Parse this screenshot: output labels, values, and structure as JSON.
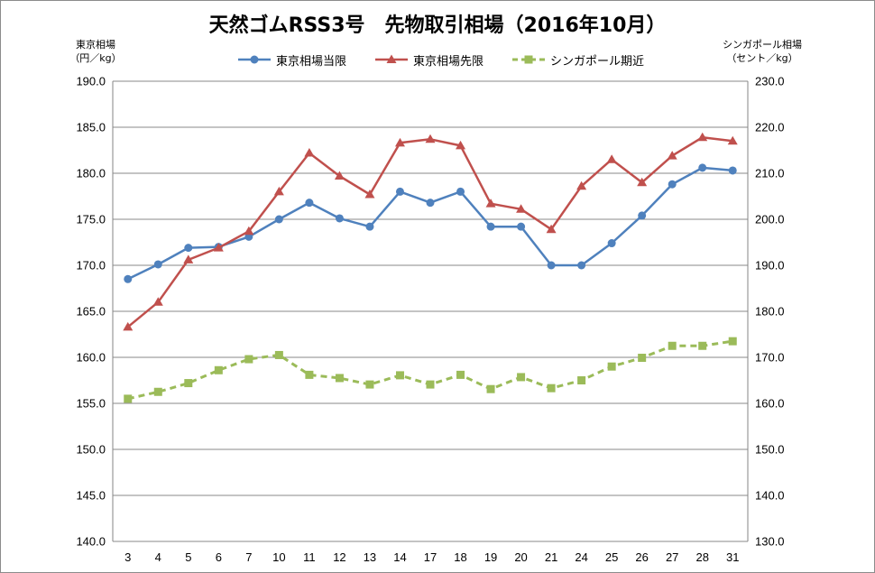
{
  "chart_data": {
    "type": "line",
    "title": "天然ゴムRSS3号　先物取引相場（2016年10月）",
    "ylabel_left": [
      "東京相場",
      "（円／kg）"
    ],
    "ylabel_right": [
      "シンガポール相場",
      "（セント／kg）"
    ],
    "categories": [
      "3",
      "4",
      "5",
      "6",
      "7",
      "10",
      "11",
      "12",
      "13",
      "14",
      "17",
      "18",
      "19",
      "20",
      "21",
      "24",
      "25",
      "26",
      "27",
      "28",
      "31"
    ],
    "y_left_ticks": [
      "190.0",
      "185.0",
      "180.0",
      "175.0",
      "170.0",
      "165.0",
      "160.0",
      "155.0",
      "150.0",
      "145.0",
      "140.0"
    ],
    "y_right_ticks": [
      "230.0",
      "220.0",
      "210.0",
      "200.0",
      "190.0",
      "180.0",
      "170.0",
      "160.0",
      "150.0",
      "140.0",
      "130.0"
    ],
    "ylim_left": [
      140,
      190
    ],
    "ylim_right": [
      130,
      230
    ],
    "grid": true,
    "legend_position": "top",
    "series": [
      {
        "name": "東京相場当限",
        "axis": "left",
        "color": "#4f81bd",
        "marker": "circle",
        "dash": false,
        "values": [
          168.5,
          170.1,
          171.9,
          172.0,
          173.1,
          175.0,
          176.8,
          175.1,
          174.2,
          178.0,
          176.8,
          178.0,
          174.2,
          174.2,
          170.0,
          170.0,
          172.4,
          175.4,
          178.8,
          180.6,
          180.3
        ]
      },
      {
        "name": "東京相場先限",
        "axis": "left",
        "color": "#c0504d",
        "marker": "triangle",
        "dash": false,
        "values": [
          163.3,
          166.0,
          170.6,
          171.9,
          173.7,
          178.0,
          182.2,
          179.7,
          177.7,
          183.3,
          183.7,
          183.0,
          176.7,
          176.1,
          173.9,
          178.6,
          181.5,
          179.0,
          181.9,
          183.9,
          183.5
        ]
      },
      {
        "name": "シンガポール期近",
        "axis": "right",
        "color": "#9bbb59",
        "marker": "square",
        "dash": true,
        "values": [
          161.0,
          162.5,
          164.4,
          167.2,
          169.6,
          170.5,
          166.2,
          165.5,
          164.1,
          166.1,
          164.1,
          166.2,
          163.1,
          165.7,
          163.3,
          165.0,
          168.0,
          169.9,
          172.5,
          172.5,
          173.5
        ]
      }
    ]
  }
}
